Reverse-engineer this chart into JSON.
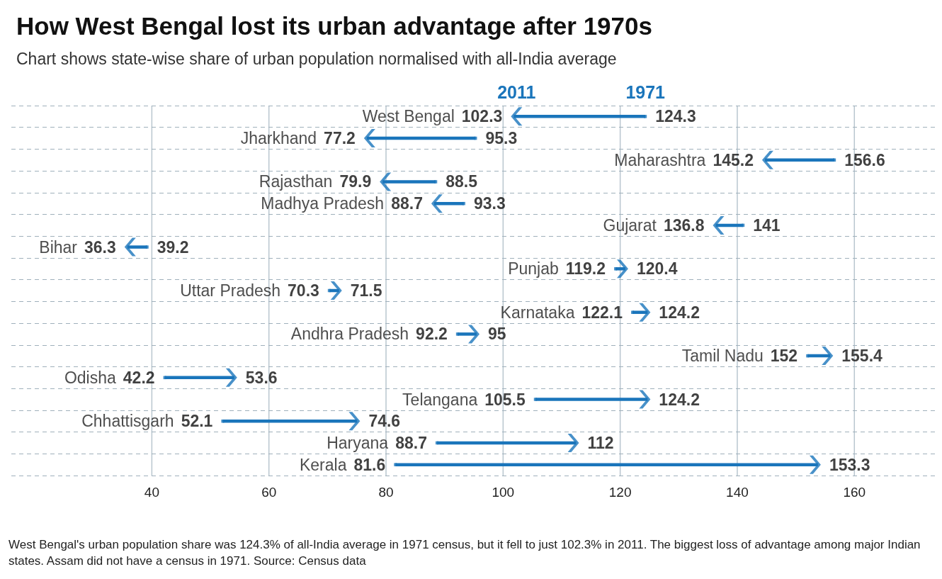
{
  "chart_data": {
    "type": "scatter",
    "title": "How West Bengal lost its urban advantage after 1970s",
    "subtitle": "Chart shows state-wise share of urban population normalised with all-India average",
    "orientation": "horizontal",
    "data_labels": true,
    "grid": true,
    "categories": [
      "West Bengal",
      "Jharkhand",
      "Maharashtra",
      "Rajasthan",
      "Madhya Pradesh",
      "Gujarat",
      "Bihar",
      "Punjab",
      "Uttar Pradesh",
      "Karnataka",
      "Andhra Pradesh",
      "Tamil Nadu",
      "Odisha",
      "Telangana",
      "Chhattisgarh",
      "Haryana",
      "Kerala"
    ],
    "series": [
      {
        "name": "1971",
        "color": "#1a75bb",
        "values": [
          124.3,
          95.3,
          156.6,
          88.5,
          93.3,
          141,
          39.2,
          119.2,
          70.3,
          122.1,
          92.2,
          152,
          42.2,
          105.5,
          52.1,
          88.7,
          81.6
        ]
      },
      {
        "name": "2011",
        "color": "#1a75bb",
        "values": [
          102.3,
          77.2,
          145.2,
          79.9,
          88.7,
          136.8,
          36.3,
          120.4,
          71.5,
          124.2,
          95,
          155.4,
          53.6,
          124.2,
          74.6,
          112,
          153.3
        ]
      }
    ],
    "xlim": [
      16,
      174
    ],
    "xticks": [
      40,
      60,
      80,
      100,
      120,
      140,
      160
    ],
    "annotations": [
      "West Bengal's urban population share was 124.3% of all-India average in 1971 census, but it fell to just 102.3% in 2011. The biggest loss of advantage among major Indian states. Assam did not have a census in 1971. Source: Census data"
    ]
  }
}
